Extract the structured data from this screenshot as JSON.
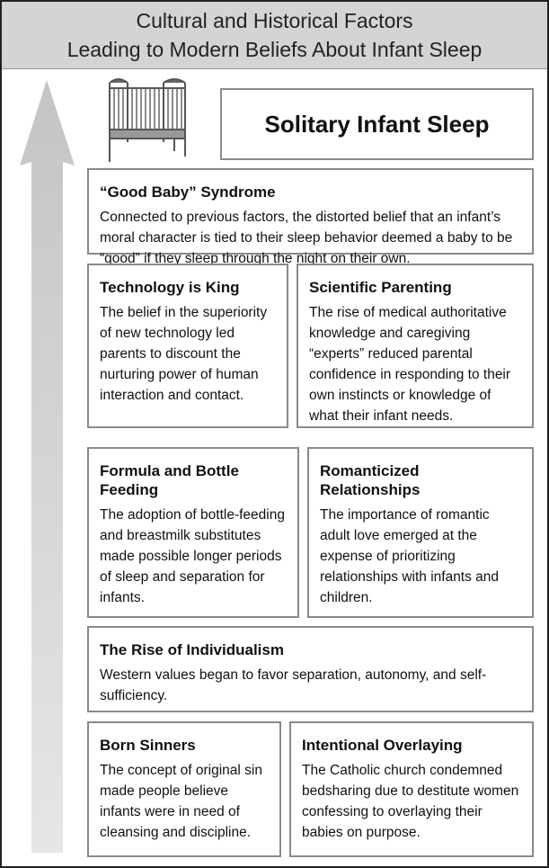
{
  "header": {
    "title_line1": "Cultural and Historical Factors",
    "title_line2": "Leading to Modern Beliefs About Infant Sleep"
  },
  "outcome": {
    "label": "Solitary Infant Sleep",
    "icon": "crib-icon"
  },
  "arrow": {
    "icon": "up-arrow-icon",
    "color": "#c8c8c8"
  },
  "factors": [
    {
      "title": "“Good Baby” Syndrome",
      "text": "Connected to previous factors, the distorted belief that an infant’s moral character is tied to their sleep behavior deemed a baby to be “good” if they sleep through the night on their own."
    },
    {
      "title": "Technology is King",
      "text": "The belief in the superiority of new technology led parents to discount the nurturing power of human interaction and contact."
    },
    {
      "title": "Scientific Parenting",
      "text": "The rise of medical authoritative knowledge and caregiving “experts” reduced parental confidence in responding to their own instincts or knowledge of what their infant needs."
    },
    {
      "title": "Formula and Bottle Feeding",
      "text": "The adoption of bottle-feeding and breastmilk substitutes made possible longer periods of sleep and separation for infants."
    },
    {
      "title": "Romanticized Relationships",
      "text": "The importance of romantic adult love emerged at the expense of prioritizing relationships with infants and children."
    },
    {
      "title": "The Rise of Individualism",
      "text": "Western values began to favor separation, autonomy, and self-sufficiency."
    },
    {
      "title": "Born Sinners",
      "text": "The concept of original sin made people believe infants were in need of cleansing and discipline."
    },
    {
      "title": "Intentional Overlaying",
      "text": "The Catholic church condemned bedsharing due to destitute women confessing to overlaying their babies on purpose."
    }
  ]
}
